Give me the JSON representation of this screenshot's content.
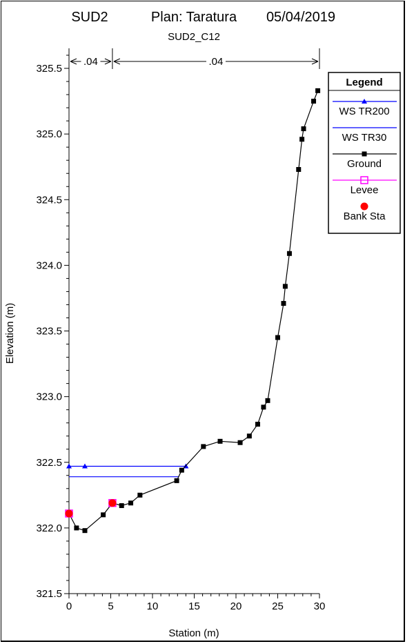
{
  "chart_data": {
    "type": "line",
    "title": {
      "project": "SUD2",
      "plan": "Plan: Taratura",
      "date": "05/04/2019",
      "subtitle": "SUD2_C12"
    },
    "xlabel": "Station (m)",
    "ylabel": "Elevation (m)",
    "xlim": [
      0,
      30
    ],
    "ylim": [
      321.5,
      325.6
    ],
    "x_ticks": [
      0,
      5,
      10,
      15,
      20,
      25,
      30
    ],
    "y_ticks": [
      321.5,
      322.0,
      322.5,
      323.0,
      323.5,
      324.0,
      324.5,
      325.0,
      325.5
    ],
    "x_tick_labels": [
      "0",
      "5",
      "10",
      "15",
      "20",
      "25",
      "30"
    ],
    "y_tick_labels": [
      "321.5",
      "322.0",
      "322.5",
      "323.0",
      "323.5",
      "324.0",
      "324.5",
      "325.0",
      "325.5"
    ],
    "manning": {
      "segments": [
        {
          "label": ".04",
          "x_start": 0,
          "x_end": 5.2
        },
        {
          "label": ".04",
          "x_start": 5.2,
          "x_end": 30
        }
      ]
    },
    "legend": {
      "title": "Legend",
      "position": "top-right",
      "entries": [
        {
          "label": "WS TR200",
          "color": "#0000ff",
          "marker": "triangle"
        },
        {
          "label": "WS TR30",
          "color": "#0000ff",
          "marker": "none"
        },
        {
          "label": "Ground",
          "color": "#000000",
          "marker": "square"
        },
        {
          "label": "Levee",
          "color": "#ff00ff",
          "marker": "open-square"
        },
        {
          "label": "Bank Sta",
          "color": "#ff0000",
          "marker": "circle"
        }
      ]
    },
    "series": [
      {
        "name": "WS TR200",
        "color": "#0000ff",
        "marker": "triangle",
        "x": [
          0,
          1.9,
          14.0
        ],
        "y": [
          322.47,
          322.47,
          322.47
        ]
      },
      {
        "name": "WS TR30",
        "color": "#0000ff",
        "marker": "none",
        "x": [
          0,
          13.2
        ],
        "y": [
          322.39,
          322.39
        ]
      },
      {
        "name": "Ground",
        "color": "#000000",
        "marker": "square",
        "x": [
          0,
          0.9,
          1.9,
          4.1,
          5.2,
          6.3,
          7.4,
          8.5,
          12.9,
          13.5,
          16.1,
          18.1,
          20.5,
          21.6,
          22.6,
          23.3,
          23.8,
          25.0,
          25.7,
          25.9,
          26.4,
          27.5,
          27.9,
          28.1,
          29.3,
          29.8
        ],
        "y": [
          322.11,
          322.0,
          321.98,
          322.1,
          322.19,
          322.17,
          322.19,
          322.25,
          322.36,
          322.44,
          322.62,
          322.66,
          322.65,
          322.7,
          322.79,
          322.92,
          322.97,
          323.45,
          323.71,
          323.84,
          324.09,
          324.73,
          324.96,
          325.04,
          325.25,
          325.33
        ]
      },
      {
        "name": "Levee",
        "color": "#ff00ff",
        "marker": "open-square",
        "x": [
          0,
          5.2
        ],
        "y": [
          322.11,
          322.19
        ]
      },
      {
        "name": "Bank Sta",
        "color": "#ff0000",
        "marker": "circle",
        "x": [
          0,
          5.2
        ],
        "y": [
          322.11,
          322.19
        ]
      }
    ]
  }
}
